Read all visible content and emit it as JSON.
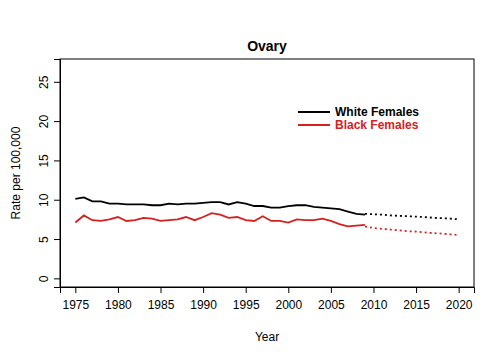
{
  "chart_data": {
    "type": "line",
    "title": "Ovary",
    "x_label": "Year",
    "y_label": "Rate per 100,000",
    "x": [
      1975,
      1976,
      1977,
      1978,
      1979,
      1980,
      1981,
      1982,
      1983,
      1984,
      1985,
      1986,
      1987,
      1988,
      1989,
      1990,
      1991,
      1992,
      1993,
      1994,
      1995,
      1996,
      1997,
      1998,
      1999,
      2000,
      2001,
      2002,
      2003,
      2004,
      2005,
      2006,
      2007,
      2008,
      2009,
      2010,
      2011,
      2012,
      2013,
      2014,
      2015,
      2016,
      2017,
      2018,
      2019,
      2020
    ],
    "xlim": [
      1973.2,
      2021.8
    ],
    "xticks": [
      1975,
      1980,
      1985,
      1990,
      1995,
      2000,
      2005,
      2010,
      2015,
      2020
    ],
    "ylim": [
      -1.1,
      27.9
    ],
    "yticks": [
      0,
      5,
      10,
      15,
      20,
      25
    ],
    "legend": "topright",
    "series": [
      {
        "name": "White Females",
        "color": "#000000",
        "line_style": "solid",
        "values": [
          10.1,
          10.3,
          9.8,
          9.8,
          9.5,
          9.5,
          9.4,
          9.4,
          9.4,
          9.3,
          9.3,
          9.5,
          9.4,
          9.5,
          9.5,
          9.6,
          9.7,
          9.7,
          9.4,
          9.7,
          9.5,
          9.2,
          9.2,
          9.0,
          9.0,
          9.2,
          9.3,
          9.3,
          9.1,
          9.0,
          8.9,
          8.8,
          8.5,
          8.2,
          8.1,
          null,
          null,
          null,
          null,
          null,
          null,
          null,
          null,
          null,
          null,
          null
        ]
      },
      {
        "name": "Black Females",
        "color": "#d62020",
        "line_style": "solid",
        "values": [
          7.1,
          8.0,
          7.4,
          7.3,
          7.5,
          7.8,
          7.3,
          7.4,
          7.7,
          7.6,
          7.3,
          7.4,
          7.5,
          7.8,
          7.4,
          7.8,
          8.3,
          8.1,
          7.7,
          7.8,
          7.4,
          7.3,
          7.9,
          7.3,
          7.3,
          7.1,
          7.5,
          7.4,
          7.4,
          7.6,
          7.3,
          6.9,
          6.6,
          6.7,
          6.8,
          null,
          null,
          null,
          null,
          null,
          null,
          null,
          null,
          null,
          null,
          null
        ]
      },
      {
        "color": "#000000",
        "line_style": "dotted",
        "values": [
          null,
          null,
          null,
          null,
          null,
          null,
          null,
          null,
          null,
          null,
          null,
          null,
          null,
          null,
          null,
          null,
          null,
          null,
          null,
          null,
          null,
          null,
          null,
          null,
          null,
          null,
          null,
          null,
          null,
          null,
          null,
          null,
          null,
          null,
          8.2,
          8.15,
          8.1,
          8.0,
          7.95,
          7.9,
          7.85,
          7.8,
          7.7,
          7.65,
          7.6,
          7.5
        ]
      },
      {
        "color": "#d62020",
        "line_style": "dotted",
        "values": [
          null,
          null,
          null,
          null,
          null,
          null,
          null,
          null,
          null,
          null,
          null,
          null,
          null,
          null,
          null,
          null,
          null,
          null,
          null,
          null,
          null,
          null,
          null,
          null,
          null,
          null,
          null,
          null,
          null,
          null,
          null,
          null,
          null,
          null,
          6.6,
          6.4,
          6.3,
          6.2,
          6.1,
          6.0,
          5.95,
          5.85,
          5.75,
          5.7,
          5.6,
          5.5
        ]
      }
    ]
  }
}
